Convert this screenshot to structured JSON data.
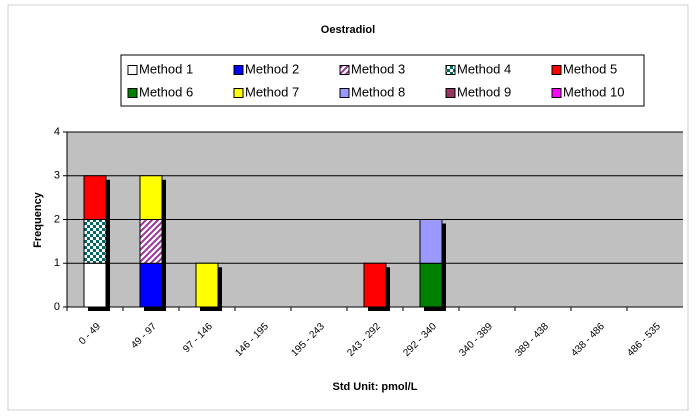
{
  "chart_data": {
    "type": "bar",
    "stacked": true,
    "title": "Oestradiol",
    "xlabel": "Std Unit: pmol/L",
    "ylabel": "Frequency",
    "categories": [
      "0 - 49",
      "49 - 97",
      "97 - 146",
      "146 - 195",
      "195 - 243",
      "243 - 292",
      "292 - 340",
      "340 - 389",
      "389 - 438",
      "438 - 486",
      "486 - 535"
    ],
    "series": [
      {
        "name": "Method 1",
        "color": "#ffffff",
        "values": [
          1,
          0,
          0,
          0,
          0,
          0,
          0,
          0,
          0,
          0,
          0
        ]
      },
      {
        "name": "Method 2",
        "color": "#0000ff",
        "values": [
          0,
          1,
          0,
          0,
          0,
          0,
          0,
          0,
          0,
          0,
          0
        ]
      },
      {
        "name": "Method 3",
        "color": "#993399",
        "pattern": "hatch",
        "values": [
          0,
          1,
          0,
          0,
          0,
          0,
          0,
          0,
          0,
          0,
          0
        ]
      },
      {
        "name": "Method 4",
        "color": "#006666",
        "pattern": "check",
        "values": [
          1,
          0,
          0,
          0,
          0,
          0,
          0,
          0,
          0,
          0,
          0
        ]
      },
      {
        "name": "Method 5",
        "color": "#ff0000",
        "values": [
          1,
          0,
          0,
          0,
          0,
          1,
          0,
          0,
          0,
          0,
          0
        ]
      },
      {
        "name": "Method 6",
        "color": "#008000",
        "values": [
          0,
          0,
          0,
          0,
          0,
          0,
          1,
          0,
          0,
          0,
          0
        ]
      },
      {
        "name": "Method 7",
        "color": "#ffff00",
        "values": [
          0,
          1,
          1,
          0,
          0,
          0,
          0,
          0,
          0,
          0,
          0
        ]
      },
      {
        "name": "Method 8",
        "color": "#9999ff",
        "values": [
          0,
          0,
          0,
          0,
          0,
          0,
          1,
          0,
          0,
          0,
          0
        ]
      },
      {
        "name": "Method 9",
        "color": "#993366",
        "values": [
          0,
          0,
          0,
          0,
          0,
          0,
          0,
          0,
          0,
          0,
          0
        ]
      },
      {
        "name": "Method 10",
        "color": "#ff00ff",
        "values": [
          0,
          0,
          0,
          0,
          0,
          0,
          0,
          0,
          0,
          0,
          0
        ]
      }
    ],
    "ylim": [
      0,
      4
    ],
    "yticks": [
      0,
      1,
      2,
      3,
      4
    ],
    "grid": true
  }
}
